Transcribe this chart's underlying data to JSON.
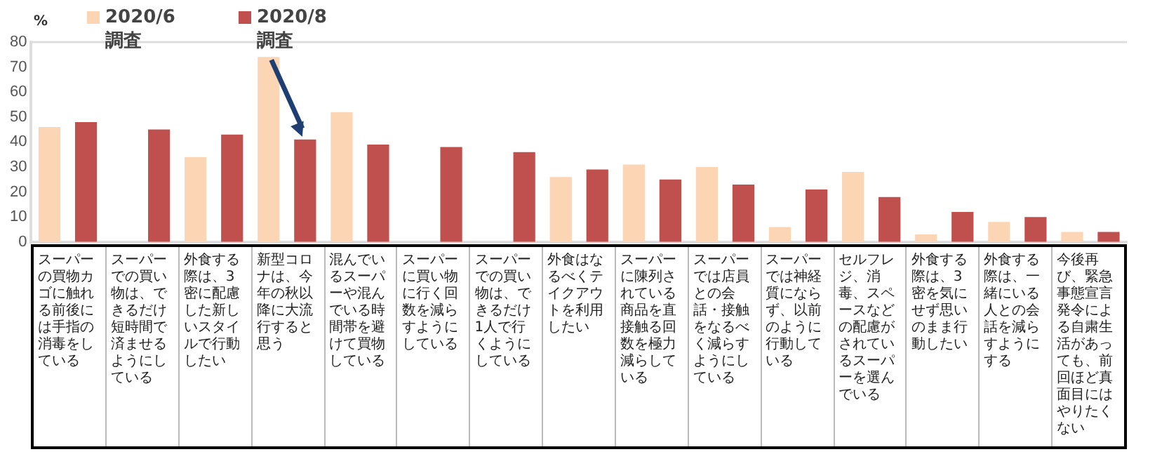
{
  "chart_data": {
    "type": "bar",
    "ylabel": "%",
    "legend": "top left",
    "grid": false,
    "categories": [
      "スーパーの買物カゴに触れる前後には手指の消毒をしている",
      "スーパーでの買い物は、できるだけ短時間で済ませるようにしている",
      "外食する際は、3密に配慮した新しいスタイルで行動したい",
      "新型コロナは、今年の秋以降に大流行すると思う",
      "混んでいるスーパーや混んでいる時間帯を避けて買物している",
      "スーパーに買い物に行く回数を減らすようにしている",
      "スーパーでの買い物は、できるだけ1人で行くようにしている",
      "外食はなるべくテイクアウトを利用したい",
      "スーパーに陳列されている商品を直接触る回数を極力減らしている",
      "スーパーでは店員との会話・接触をなるべく減らすようにしている",
      "スーパーでは神経質にならず、以前のように行動している",
      "セルフレジ、消毒、スペースなどの配慮がされているスーパーを選んでいる",
      "外食する際は、3密を気にせず思いのまま行動したい",
      "外食する際は、一緒にいる人との会話を減らすようにする",
      "今後再び、緊急事態宣言発令による自粛生活があっても、前回ほど真面目にはやりたくない"
    ],
    "series": [
      {
        "name": "2020/6調査",
        "color": "#fcd5b4",
        "values": [
          46,
          null,
          34,
          74,
          52,
          null,
          null,
          26,
          31,
          30,
          6,
          28,
          3,
          8,
          4
        ]
      },
      {
        "name": "2020/8調査",
        "color": "#c0504d",
        "values": [
          48,
          45,
          43,
          41,
          39,
          38,
          36,
          29,
          25,
          23,
          21,
          18,
          12,
          10,
          4
        ]
      }
    ],
    "ylim": [
      0,
      80
    ],
    "yticks": [
      0,
      10,
      20,
      30,
      40,
      50,
      60,
      70,
      80
    ]
  }
}
